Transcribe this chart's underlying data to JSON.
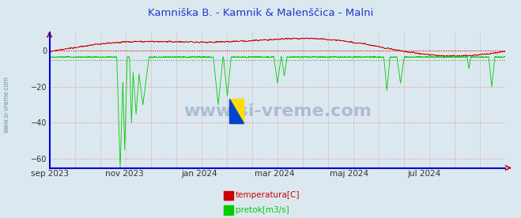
{
  "title": "Kamniška B. - Kamnik & Malenščica - Malni",
  "title_color": "#1a3acc",
  "bg_color": "#dce8f0",
  "plot_bg_color": "#dce8f0",
  "ylim": [
    -65,
    10
  ],
  "yticks": [
    0,
    -20,
    -40,
    -60
  ],
  "grid_color": "#e08080",
  "xaxis_color": "#0000dd",
  "yaxis_color": "#0000dd",
  "xlabel_color": "#404040",
  "xtick_labels": [
    "sep 2023",
    "nov 2023",
    "jan 2024",
    "mar 2024",
    "maj 2024",
    "jul 2024"
  ],
  "xtick_positions": [
    0.0,
    0.1644,
    0.3288,
    0.4932,
    0.6575,
    0.8219
  ],
  "legend_labels": [
    "temperatura[C]",
    "pretok[m3/s]"
  ],
  "temp_color": "#cc0000",
  "flow_color": "#00cc00",
  "sidebar_text": "www.si-vreme.com",
  "watermark_text": "www.si-vreme.com",
  "n_points": 8760,
  "seed": 42
}
